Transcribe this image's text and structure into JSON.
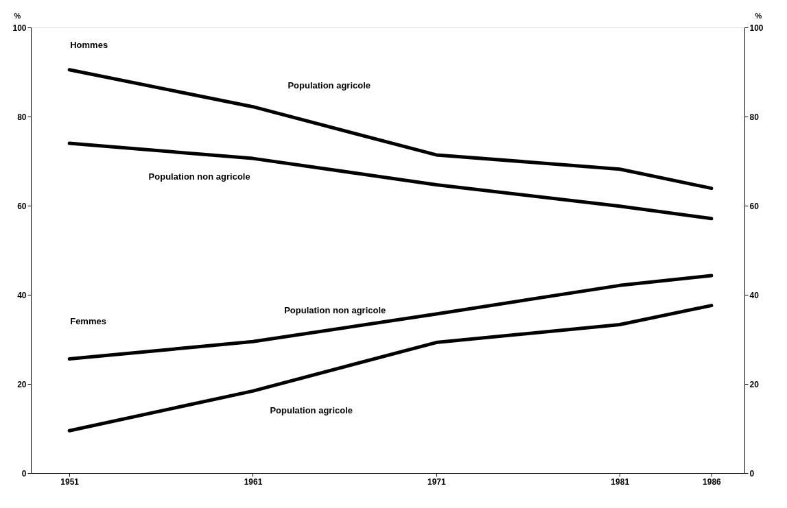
{
  "chart_data": {
    "type": "line",
    "x": [
      1951,
      1961,
      1971,
      1981,
      1986
    ],
    "xlim": [
      1948.9,
      1987.8
    ],
    "xticks": [
      1951,
      1961,
      1971,
      1981,
      1986
    ],
    "ylim": [
      0,
      100
    ],
    "yticks": [
      0,
      20,
      40,
      60,
      80,
      100
    ],
    "ylabel": "%",
    "y2lim": [
      0,
      100
    ],
    "y2ticks": [
      0,
      20,
      40,
      60,
      80,
      100
    ],
    "y2label": "%",
    "grid": false,
    "legend": false,
    "marker": "none",
    "line_style": "solid",
    "series": [
      {
        "color": "#000000",
        "values": [
          90.5,
          82.2,
          71.4,
          68.2,
          63.9
        ]
      },
      {
        "color": "#000000",
        "values": [
          74.0,
          70.6,
          64.7,
          59.9,
          57.1
        ]
      },
      {
        "color": "#000000",
        "values": [
          25.6,
          29.5,
          35.7,
          42.1,
          44.3
        ]
      },
      {
        "color": "#000000",
        "values": [
          9.5,
          18.4,
          29.3,
          33.3,
          37.6
        ]
      }
    ],
    "annotations": [
      "Hommes",
      "Population agricole",
      "Population non agricole",
      "Femmes",
      "Population non agricole",
      "Population agricole"
    ]
  }
}
